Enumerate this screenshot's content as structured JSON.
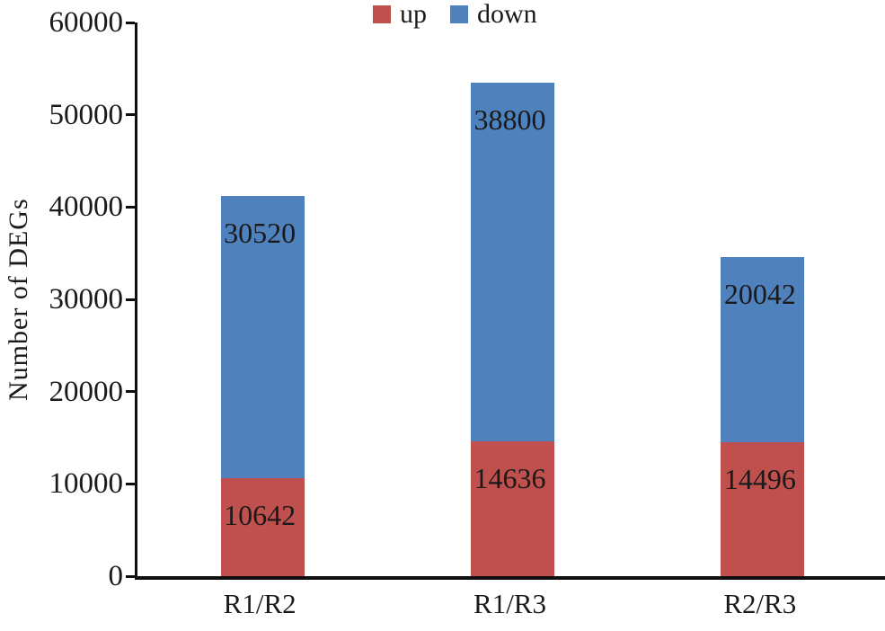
{
  "figure": {
    "kind": "stacked-bar-chart"
  },
  "chart_data": {
    "type": "bar",
    "stacked": true,
    "title": "",
    "categories": [
      "R1/R2",
      "R1/R3",
      "R2/R3"
    ],
    "series": [
      {
        "name": "up",
        "color": "#c0504d",
        "values": [
          10642,
          14636,
          14496
        ]
      },
      {
        "name": "down",
        "color": "#4f81bd",
        "values": [
          30520,
          38800,
          20042
        ]
      }
    ],
    "xlabel": "",
    "ylabel": "Number of DEGs",
    "ylim": [
      0,
      60000
    ],
    "ytick_step": 10000,
    "ytick_labels": [
      "0",
      "10000",
      "20000",
      "30000",
      "40000",
      "50000",
      "60000"
    ],
    "grid": false,
    "legend_position": "top-center",
    "bar_value_labels_visible": true,
    "axis_color": "#0f0f0f",
    "text_color": "#1a1a1a"
  }
}
